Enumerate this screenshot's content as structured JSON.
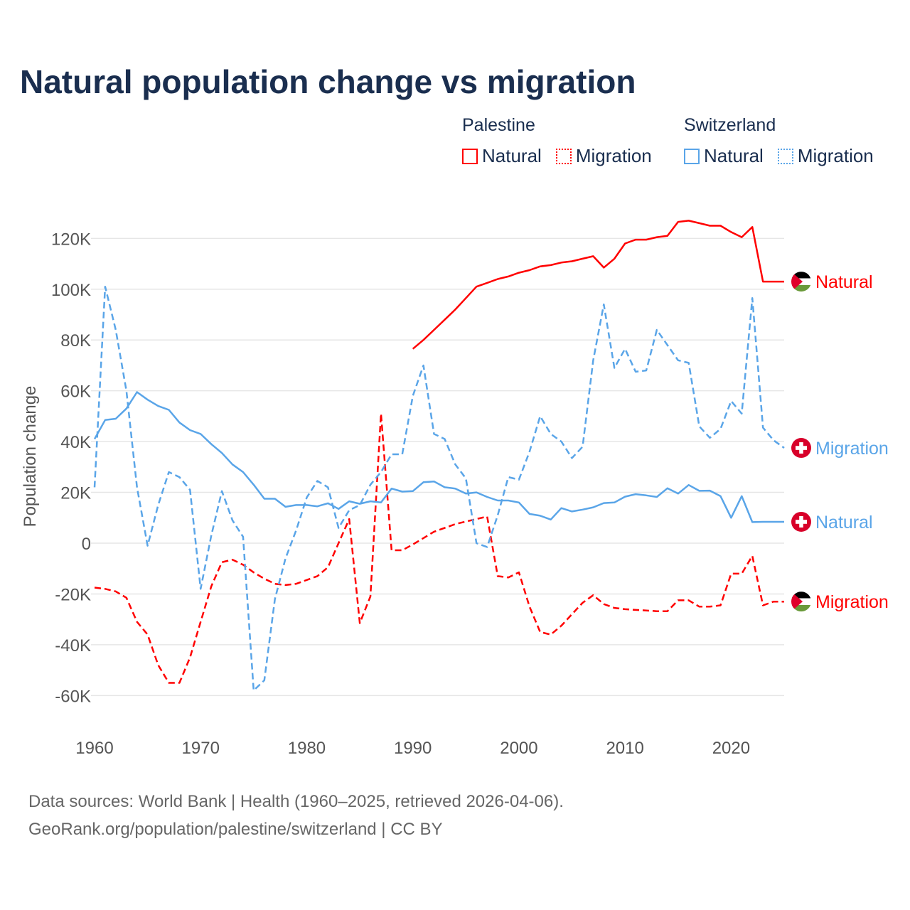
{
  "chart_data": {
    "type": "line",
    "title": "Natural population change vs migration",
    "ylabel": "Population change",
    "xlabel": "",
    "xlim": [
      1960,
      2025
    ],
    "ylim": [
      -70000,
      130000
    ],
    "x_ticks": [
      1960,
      1970,
      1980,
      1990,
      2000,
      2010,
      2020
    ],
    "x_tick_labels": [
      "1960",
      "1970",
      "1980",
      "1990",
      "2000",
      "2010",
      "2020"
    ],
    "y_ticks": [
      120000,
      100000,
      80000,
      60000,
      40000,
      20000,
      0,
      -20000,
      -40000,
      -60000
    ],
    "y_tick_labels": [
      "120K",
      "100K",
      "80K",
      "60K",
      "40K",
      "20K",
      "0",
      "-20K",
      "-40K",
      "-60K"
    ],
    "grid": true,
    "legend": {
      "placement": "top-right",
      "groups": [
        {
          "name": "Palestine",
          "items": [
            "Natural",
            "Migration"
          ]
        },
        {
          "name": "Switzerland",
          "items": [
            "Natural",
            "Migration"
          ]
        }
      ]
    },
    "series": [
      {
        "name": "Palestine Natural",
        "country": "Palestine",
        "kind": "Natural",
        "color": "#ff0000",
        "dash": false,
        "end_label": "Natural",
        "flag": "palestine",
        "start_year": 1990,
        "values": [
          76.5,
          80,
          84,
          88,
          92,
          96.5,
          101,
          102.5,
          104,
          105,
          106.5,
          107.5,
          109,
          109.5,
          110.5,
          111,
          112,
          113,
          108.5,
          112,
          118,
          119.5,
          119.5,
          120.5,
          121,
          126.5,
          127,
          126,
          125,
          125,
          122.5,
          120.5,
          124.5,
          103,
          103,
          103
        ]
      },
      {
        "name": "Palestine Migration",
        "country": "Palestine",
        "kind": "Migration",
        "color": "#ff0000",
        "dash": true,
        "end_label": "Migration",
        "flag": "palestine",
        "start_year": 1960,
        "values": [
          -17.5,
          -18,
          -19,
          -21.5,
          -31,
          -36,
          -48,
          -55,
          -55,
          -45,
          -31,
          -17,
          -7.5,
          -6.5,
          -8.5,
          -11.5,
          -14,
          -16,
          -16.5,
          -16,
          -14.5,
          -13,
          -9.5,
          0,
          9.5,
          -31.5,
          -21,
          51,
          -2.8,
          -2.8,
          -0.5,
          2,
          4.5,
          6,
          7.5,
          8.5,
          9.5,
          10.5,
          -13,
          -13.5,
          -11.5,
          -25,
          -35,
          -36,
          -32.5,
          -28,
          -23.5,
          -20.5,
          -24,
          -25.5,
          -26,
          -26.3,
          -26.5,
          -26.8,
          -26.8,
          -22.5,
          -22.5,
          -25,
          -25,
          -24.5,
          -12,
          -12,
          -5,
          -24.5,
          -23,
          -23
        ]
      },
      {
        "name": "Switzerland Natural",
        "country": "Switzerland",
        "kind": "Natural",
        "color": "#5aa5e8",
        "dash": false,
        "end_label": "Natural",
        "flag": "switzerland",
        "start_year": 1960,
        "values": [
          41,
          48.5,
          49,
          53,
          59.5,
          56.5,
          54,
          52.5,
          47.5,
          44.5,
          43,
          39,
          35.5,
          31,
          28,
          23,
          17.5,
          17.5,
          14.3,
          15,
          15,
          14.5,
          15.7,
          13.5,
          16.5,
          15.5,
          16.5,
          16,
          21.5,
          20.3,
          20.5,
          24,
          24.3,
          22,
          21.5,
          19.5,
          20,
          18.2,
          16.8,
          16.8,
          16,
          11.5,
          10.8,
          9.3,
          13.8,
          12.5,
          13.2,
          14.1,
          15.8,
          16,
          18.3,
          19.3,
          18.8,
          18.2,
          21.6,
          19.5,
          22.9,
          20.6,
          20.7,
          18.5,
          10,
          18.5,
          8.3,
          8.4,
          8.4,
          8.4
        ]
      },
      {
        "name": "Switzerland Migration",
        "country": "Switzerland",
        "kind": "Migration",
        "color": "#5aa5e8",
        "dash": true,
        "end_label": "Migration",
        "flag": "switzerland",
        "start_year": 1960,
        "values": [
          22,
          101,
          84,
          60,
          22,
          -1,
          15,
          28,
          26,
          21,
          -18,
          3,
          20.5,
          9,
          2.5,
          -58,
          -54,
          -22,
          -6,
          5,
          18,
          24.5,
          22,
          6,
          13,
          15,
          23,
          28,
          35,
          35,
          58,
          70,
          43,
          41,
          31,
          25.5,
          0,
          -1.5,
          11,
          26,
          25,
          36,
          50,
          43,
          40,
          33.5,
          38,
          72,
          94,
          69,
          76.5,
          67.5,
          68,
          84,
          78,
          72,
          71,
          46,
          41.5,
          45,
          56,
          51,
          96.5,
          45.5,
          40.5,
          37.5
        ]
      }
    ],
    "value_unit": "thousands"
  },
  "footer": {
    "line1": "Data sources: World Bank | Health (1960–2025, retrieved 2026-04-06).",
    "line2": "GeoRank.org/population/palestine/switzerland | CC BY"
  }
}
